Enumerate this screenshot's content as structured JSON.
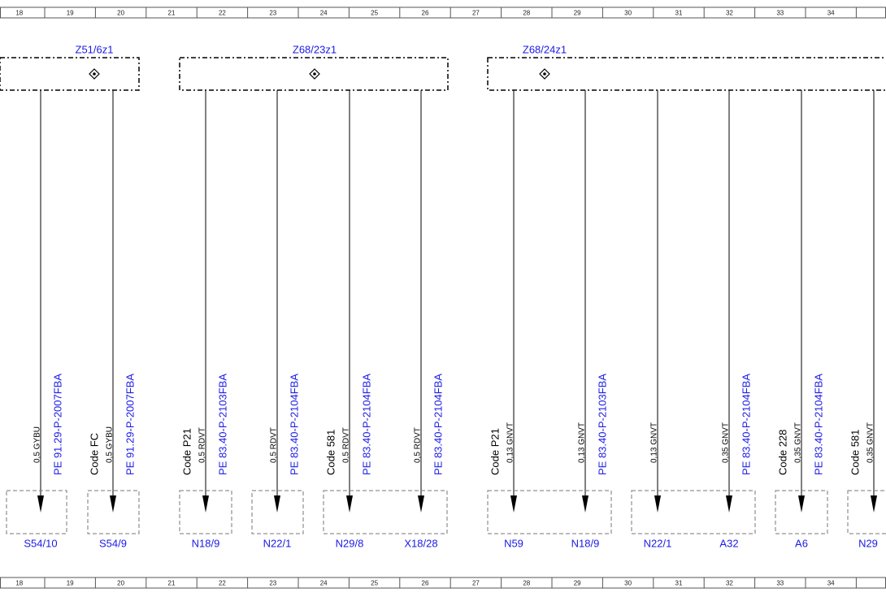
{
  "ruler": [
    "18",
    "19",
    "20",
    "21",
    "22",
    "23",
    "24",
    "25",
    "26",
    "27",
    "28",
    "29",
    "30",
    "31",
    "32",
    "33",
    "34"
  ],
  "connectors": [
    {
      "label": "Z51/6z1"
    },
    {
      "label": "Z68/23z1"
    },
    {
      "label": "Z68/24z1"
    }
  ],
  "wires": [
    {
      "wire": "0,5 GYBU",
      "part": "PE 91.29-P-2007FBA"
    },
    {
      "code": "Code FC",
      "wire": "0,5 GYBU",
      "part": "PE 91.29-P-2007FBA"
    },
    {
      "code": "Code P21",
      "wire": "0,5 RDVT",
      "part": "PE 83.40-P-2103FBA"
    },
    {
      "wire": "0,5 RDVT",
      "part": "PE 83.40-P-2104FBA"
    },
    {
      "code": "Code 581",
      "wire": "0,5 RDVT",
      "part": "PE 83.40-P-2104FBA"
    },
    {
      "wire": "0,5 RDVT",
      "part": "PE 83.40-P-2104FBA"
    },
    {
      "code": "Code P21",
      "wire": "0,13 GNVT"
    },
    {
      "wire": "0,13 GNVT",
      "part": "PE 83.40-P-2103FBA"
    },
    {
      "wire": "0,13 GNVT"
    },
    {
      "wire": "0,35 GNVT",
      "part": "PE 83.40-P-2104FBA"
    },
    {
      "code": "Code 228",
      "wire": "0,35 GNVT",
      "part": "PE 83.40-P-2104FBA"
    },
    {
      "code": "Code 581",
      "wire": "0,35 GNVT"
    }
  ],
  "targets": [
    {
      "labels": [
        "S54/10"
      ]
    },
    {
      "labels": [
        "S54/9"
      ]
    },
    {
      "labels": [
        "N18/9"
      ]
    },
    {
      "labels": [
        "N22/1"
      ]
    },
    {
      "labels": [
        "N29/8",
        "X18/28"
      ]
    },
    {
      "labels": [
        "N59",
        "N18/9"
      ]
    },
    {
      "labels": [
        "N22/1",
        "A32"
      ]
    },
    {
      "labels": [
        "A6"
      ]
    },
    {
      "labels": [
        "N29"
      ]
    }
  ]
}
